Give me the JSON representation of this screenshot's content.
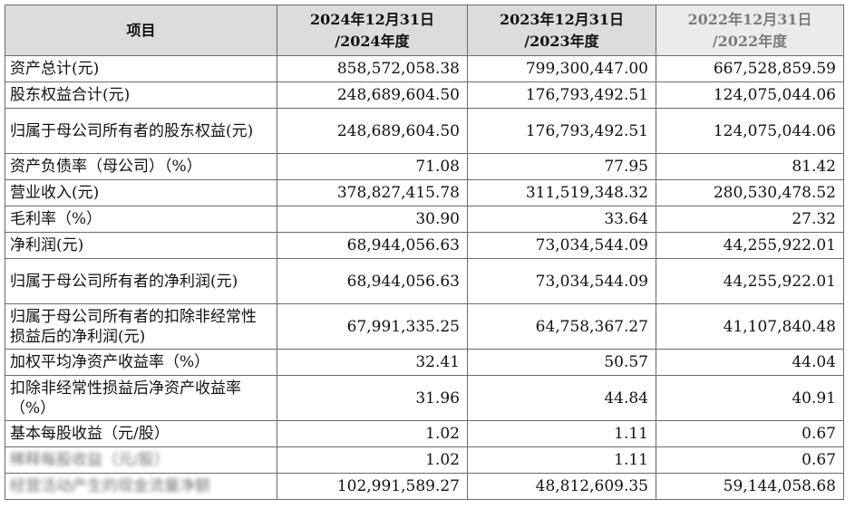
{
  "header": {
    "item": "项目",
    "col1": {
      "line1": "2024年12月31日",
      "line2": "/2024年度"
    },
    "col2": {
      "line1": "2023年12月31日",
      "line2": "/2023年度"
    },
    "col3": {
      "line1": "2022年12月31日",
      "line2": "/2022年度"
    }
  },
  "rows": [
    {
      "label": "资产总计(元)",
      "v2024": "858,572,058.38",
      "v2023": "799,300,447.00",
      "v2022": "667,528,859.59"
    },
    {
      "label": "股东权益合计(元)",
      "v2024": "248,689,604.50",
      "v2023": "176,793,492.51",
      "v2022": "124,075,044.06"
    },
    {
      "label": "归属于母公司所有者的股东权益(元)",
      "v2024": "248,689,604.50",
      "v2023": "176,793,492.51",
      "v2022": "124,075,044.06"
    },
    {
      "label": "资产负债率（母公司）（%）",
      "v2024": "71.08",
      "v2023": "77.95",
      "v2022": "81.42"
    },
    {
      "label": "营业收入(元)",
      "v2024": "378,827,415.78",
      "v2023": "311,519,348.32",
      "v2022": "280,530,478.52"
    },
    {
      "label": "毛利率（%）",
      "v2024": "30.90",
      "v2023": "33.64",
      "v2022": "27.32"
    },
    {
      "label": "净利润(元)",
      "v2024": "68,944,056.63",
      "v2023": "73,034,544.09",
      "v2022": "44,255,922.01"
    },
    {
      "label": "归属于母公司所有者的净利润(元)",
      "v2024": "68,944,056.63",
      "v2023": "73,034,544.09",
      "v2022": "44,255,922.01"
    },
    {
      "label": "归属于母公司所有者的扣除非经常性损益后的净利润(元)",
      "v2024": "67,991,335.25",
      "v2023": "64,758,367.27",
      "v2022": "41,107,840.48"
    },
    {
      "label": "加权平均净资产收益率（%）",
      "v2024": "32.41",
      "v2023": "50.57",
      "v2022": "44.04"
    },
    {
      "label": "扣除非经常性损益后净资产收益率（%）",
      "v2024": "31.96",
      "v2023": "44.84",
      "v2022": "40.91"
    },
    {
      "label": "基本每股收益（元/股）",
      "v2024": "1.02",
      "v2023": "1.11",
      "v2022": "0.67"
    },
    {
      "label": "稀释每股收益（元/股）",
      "v2024": "1.02",
      "v2023": "1.11",
      "v2022": "0.67"
    },
    {
      "label": "经营活动产生的现金流量净额",
      "v2024": "102,991,589.27",
      "v2023": "48,812,609.35",
      "v2022": "59,144,058.68"
    }
  ]
}
